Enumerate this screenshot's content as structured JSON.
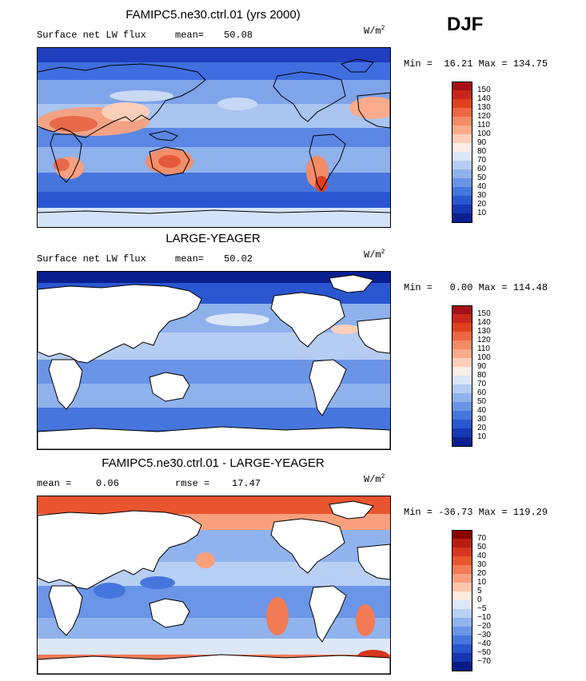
{
  "season": "DJF",
  "panels": [
    {
      "title": "FAMIPC5.ne30.ctrl.01 (yrs 2000)",
      "left_label": "Surface net LW flux",
      "stat_label": "mean=",
      "stat_value": "50.08",
      "unit_base": "W/m",
      "unit_sup": "2",
      "minmax": "Min =  16.21 Max = 134.75",
      "ocean_only": false,
      "colorbar": {
        "labels": [
          "150",
          "140",
          "130",
          "120",
          "110",
          "100",
          "90",
          "80",
          "70",
          "60",
          "50",
          "40",
          "30",
          "20",
          "10"
        ],
        "colors": [
          "#a50f15",
          "#c8261a",
          "#e0401f",
          "#ef6644",
          "#f58a66",
          "#f9ab8c",
          "#fcd0b8",
          "#fbeee6",
          "#dbe6f7",
          "#b5cdf2",
          "#8fb1ec",
          "#6a94e6",
          "#4676dd",
          "#2a56cf",
          "#1638b5",
          "#0a1f8f"
        ]
      }
    },
    {
      "title": "LARGE-YEAGER",
      "left_label": "Surface net LW flux",
      "stat_label": "mean=",
      "stat_value": "50.02",
      "unit_base": "W/m",
      "unit_sup": "2",
      "minmax": "Min =   0.00 Max = 114.48",
      "ocean_only": true,
      "colorbar": {
        "labels": [
          "150",
          "140",
          "130",
          "120",
          "110",
          "100",
          "90",
          "80",
          "70",
          "60",
          "50",
          "40",
          "30",
          "20",
          "10"
        ],
        "colors": [
          "#a50f15",
          "#c8261a",
          "#e0401f",
          "#ef6644",
          "#f58a66",
          "#f9ab8c",
          "#fcd0b8",
          "#fbeee6",
          "#dbe6f7",
          "#b5cdf2",
          "#8fb1ec",
          "#6a94e6",
          "#4676dd",
          "#2a56cf",
          "#1638b5",
          "#0a1f8f"
        ]
      }
    },
    {
      "title": "FAMIPC5.ne30.ctrl.01 - LARGE-YEAGER",
      "left_label": "mean =",
      "left_value": "0.06",
      "stat_label": "rmse =",
      "stat_value": "17.47",
      "unit_base": "W/m",
      "unit_sup": "2",
      "minmax": "Min = -36.73 Max = 119.29",
      "ocean_only": true,
      "colorbar": {
        "labels": [
          "70",
          "50",
          "40",
          "30",
          "20",
          "10",
          "5",
          "0",
          "−5",
          "−10",
          "−20",
          "−30",
          "−40",
          "−50",
          "−70"
        ],
        "colors": [
          "#8b0000",
          "#b81d13",
          "#d6361f",
          "#e9552f",
          "#f27a55",
          "#f8a07e",
          "#fcc6ad",
          "#fdebe0",
          "#dce8f8",
          "#b7cff3",
          "#91b3ed",
          "#6b95e6",
          "#4676dd",
          "#2955cc",
          "#1536b0",
          "#081c88"
        ]
      }
    }
  ]
}
